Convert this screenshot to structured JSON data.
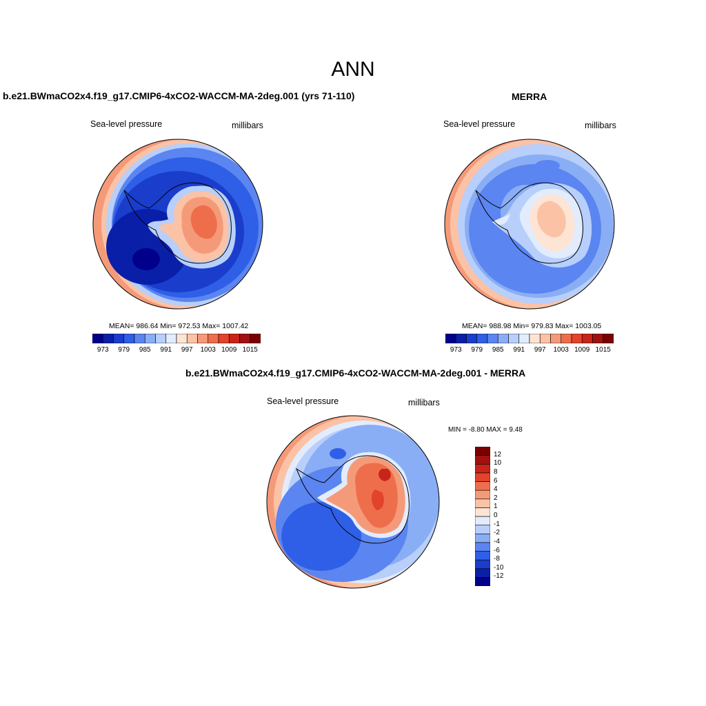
{
  "main_title": "ANN",
  "panels": [
    {
      "title": "b.e21.BWmaCO2x4.f19_g17.CMIP6-4xCO2-WACCM-MA-2deg.001 (yrs 71-110)",
      "left_label": "Sea-level pressure",
      "right_label": "millibars",
      "stats": "MEAN= 986.64  Min= 972.53  Max= 1007.42",
      "mean": 986.64,
      "min": 972.53,
      "max": 1007.42
    },
    {
      "title": "MERRA",
      "left_label": "Sea-level pressure",
      "right_label": "millibars",
      "stats": "MEAN= 988.98  Min= 979.83  Max= 1003.05",
      "mean": 988.98,
      "min": 979.83,
      "max": 1003.05
    },
    {
      "title": "b.e21.BWmaCO2x4.f19_g17.CMIP6-4xCO2-WACCM-MA-2deg.001 - MERRA",
      "left_label": "Sea-level pressure",
      "right_label": "millibars",
      "stats": "MIN =  -8.80 MAX =   9.48",
      "min": -8.8,
      "max": 9.48
    }
  ],
  "horizontal_colorbar": {
    "colors": [
      "#00008b",
      "#0a1fa8",
      "#1a3dcc",
      "#2f5fe6",
      "#5b85f0",
      "#8aaef5",
      "#b7cffa",
      "#e2ecfd",
      "#fde4d4",
      "#fbc2a6",
      "#f59a78",
      "#ee6e4c",
      "#e2432a",
      "#c8241a",
      "#a1110f",
      "#7a0000"
    ],
    "tick_labels": [
      "973",
      "979",
      "985",
      "991",
      "997",
      "1003",
      "1009",
      "1015"
    ]
  },
  "vertical_colorbar": {
    "colors": [
      "#00008b",
      "#0a1fa8",
      "#1a3dcc",
      "#2f5fe6",
      "#5b85f0",
      "#8aaef5",
      "#b7cffa",
      "#e2ecfd",
      "#fde4d4",
      "#fbc2a6",
      "#f59a78",
      "#ee6e4c",
      "#e2432a",
      "#c8241a",
      "#a1110f",
      "#7a0000"
    ],
    "tick_labels": [
      "12",
      "10",
      "8",
      "6",
      "4",
      "2",
      "1",
      "0",
      "-1",
      "-2",
      "-4",
      "-6",
      "-8",
      "-10",
      "-12"
    ]
  }
}
